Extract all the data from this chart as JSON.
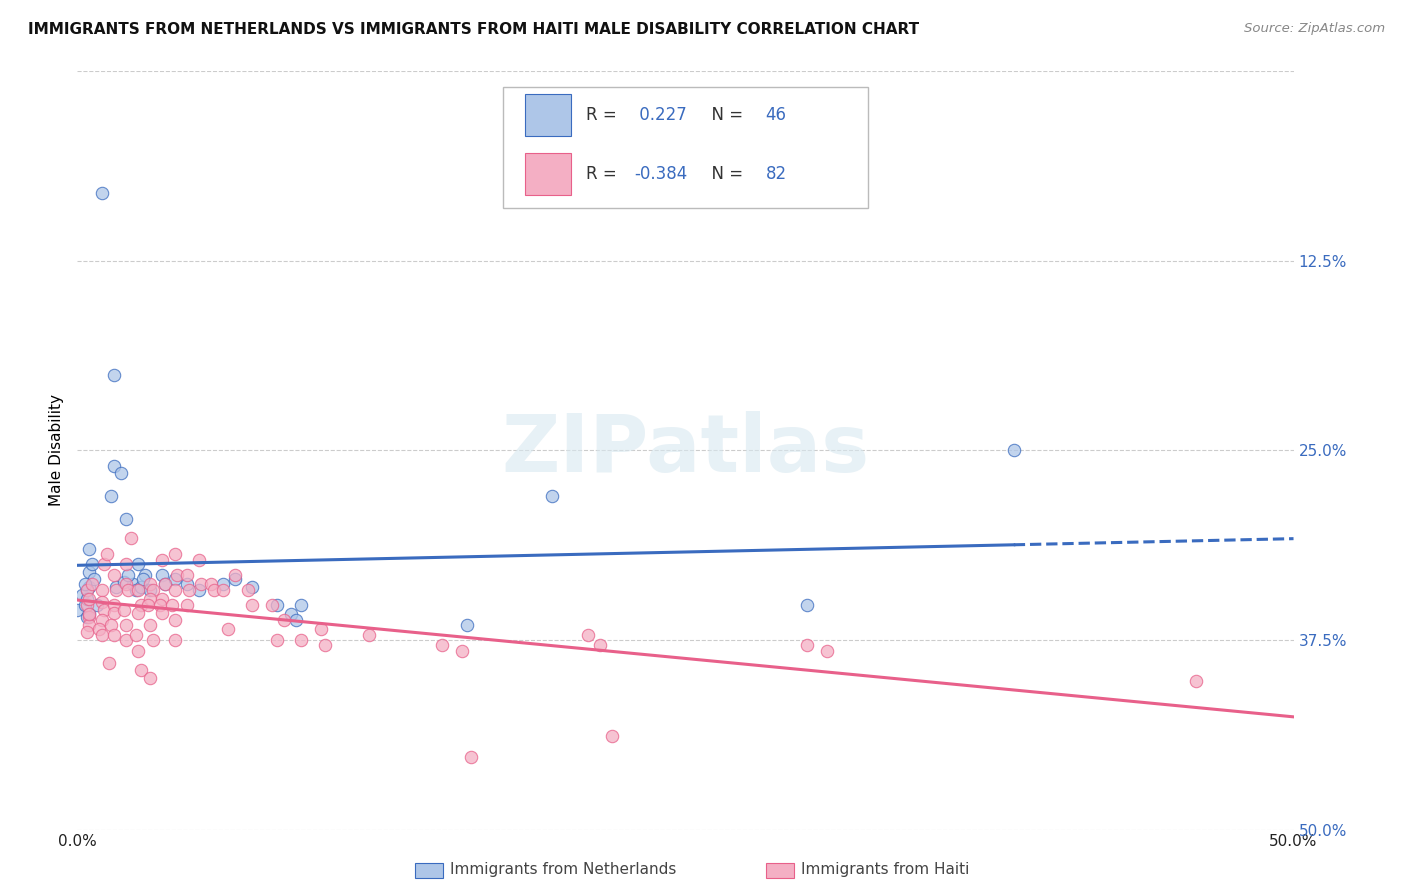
{
  "title": "IMMIGRANTS FROM NETHERLANDS VS IMMIGRANTS FROM HAITI MALE DISABILITY CORRELATION CHART",
  "source": "Source: ZipAtlas.com",
  "ylabel": "Male Disability",
  "xlim": [
    0.0,
    0.5
  ],
  "ylim": [
    0.0,
    0.5
  ],
  "xticks": [
    0.0,
    0.1,
    0.2,
    0.3,
    0.4,
    0.5
  ],
  "yticks": [
    0.0,
    0.125,
    0.25,
    0.375,
    0.5
  ],
  "netherlands_R": 0.227,
  "netherlands_N": 46,
  "haiti_R": -0.384,
  "haiti_N": 82,
  "netherlands_color": "#aec6e8",
  "haiti_color": "#f4afc4",
  "netherlands_line_color": "#3a6bbf",
  "haiti_line_color": "#e8608a",
  "netherlands_scatter": [
    [
      0.01,
      0.42
    ],
    [
      0.015,
      0.3
    ],
    [
      0.0,
      0.145
    ],
    [
      0.005,
      0.185
    ],
    [
      0.005,
      0.17
    ],
    [
      0.005,
      0.16
    ],
    [
      0.002,
      0.155
    ],
    [
      0.003,
      0.148
    ],
    [
      0.004,
      0.14
    ],
    [
      0.006,
      0.175
    ],
    [
      0.007,
      0.165
    ],
    [
      0.004,
      0.158
    ],
    [
      0.003,
      0.162
    ],
    [
      0.004,
      0.152
    ],
    [
      0.008,
      0.148
    ],
    [
      0.005,
      0.142
    ],
    [
      0.015,
      0.24
    ],
    [
      0.018,
      0.235
    ],
    [
      0.014,
      0.22
    ],
    [
      0.02,
      0.205
    ],
    [
      0.025,
      0.175
    ],
    [
      0.028,
      0.168
    ],
    [
      0.023,
      0.162
    ],
    [
      0.024,
      0.158
    ],
    [
      0.016,
      0.16
    ],
    [
      0.019,
      0.163
    ],
    [
      0.021,
      0.168
    ],
    [
      0.026,
      0.16
    ],
    [
      0.027,
      0.165
    ],
    [
      0.03,
      0.158
    ],
    [
      0.035,
      0.168
    ],
    [
      0.036,
      0.162
    ],
    [
      0.04,
      0.165
    ],
    [
      0.045,
      0.162
    ],
    [
      0.05,
      0.158
    ],
    [
      0.06,
      0.162
    ],
    [
      0.065,
      0.165
    ],
    [
      0.072,
      0.16
    ],
    [
      0.082,
      0.148
    ],
    [
      0.088,
      0.142
    ],
    [
      0.092,
      0.148
    ],
    [
      0.09,
      0.138
    ],
    [
      0.16,
      0.135
    ],
    [
      0.195,
      0.22
    ],
    [
      0.385,
      0.25
    ],
    [
      0.3,
      0.148
    ]
  ],
  "haiti_scatter": [
    [
      0.004,
      0.158
    ],
    [
      0.004,
      0.148
    ],
    [
      0.005,
      0.152
    ],
    [
      0.005,
      0.14
    ],
    [
      0.005,
      0.135
    ],
    [
      0.005,
      0.142
    ],
    [
      0.006,
      0.162
    ],
    [
      0.004,
      0.13
    ],
    [
      0.01,
      0.158
    ],
    [
      0.01,
      0.15
    ],
    [
      0.011,
      0.145
    ],
    [
      0.01,
      0.138
    ],
    [
      0.009,
      0.132
    ],
    [
      0.01,
      0.128
    ],
    [
      0.011,
      0.175
    ],
    [
      0.012,
      0.182
    ],
    [
      0.015,
      0.168
    ],
    [
      0.016,
      0.158
    ],
    [
      0.015,
      0.148
    ],
    [
      0.015,
      0.143
    ],
    [
      0.014,
      0.135
    ],
    [
      0.015,
      0.128
    ],
    [
      0.013,
      0.11
    ],
    [
      0.02,
      0.162
    ],
    [
      0.021,
      0.158
    ],
    [
      0.02,
      0.175
    ],
    [
      0.022,
      0.192
    ],
    [
      0.019,
      0.145
    ],
    [
      0.02,
      0.135
    ],
    [
      0.02,
      0.125
    ],
    [
      0.025,
      0.158
    ],
    [
      0.026,
      0.148
    ],
    [
      0.025,
      0.143
    ],
    [
      0.024,
      0.128
    ],
    [
      0.025,
      0.118
    ],
    [
      0.026,
      0.105
    ],
    [
      0.03,
      0.162
    ],
    [
      0.031,
      0.158
    ],
    [
      0.03,
      0.152
    ],
    [
      0.029,
      0.148
    ],
    [
      0.03,
      0.135
    ],
    [
      0.031,
      0.125
    ],
    [
      0.03,
      0.1
    ],
    [
      0.035,
      0.178
    ],
    [
      0.036,
      0.162
    ],
    [
      0.035,
      0.152
    ],
    [
      0.034,
      0.148
    ],
    [
      0.035,
      0.143
    ],
    [
      0.04,
      0.182
    ],
    [
      0.041,
      0.168
    ],
    [
      0.04,
      0.158
    ],
    [
      0.039,
      0.148
    ],
    [
      0.04,
      0.138
    ],
    [
      0.04,
      0.125
    ],
    [
      0.045,
      0.168
    ],
    [
      0.046,
      0.158
    ],
    [
      0.045,
      0.148
    ],
    [
      0.05,
      0.178
    ],
    [
      0.051,
      0.162
    ],
    [
      0.055,
      0.162
    ],
    [
      0.056,
      0.158
    ],
    [
      0.06,
      0.158
    ],
    [
      0.062,
      0.132
    ],
    [
      0.065,
      0.168
    ],
    [
      0.07,
      0.158
    ],
    [
      0.072,
      0.148
    ],
    [
      0.08,
      0.148
    ],
    [
      0.082,
      0.125
    ],
    [
      0.085,
      0.138
    ],
    [
      0.092,
      0.125
    ],
    [
      0.1,
      0.132
    ],
    [
      0.102,
      0.122
    ],
    [
      0.12,
      0.128
    ],
    [
      0.15,
      0.122
    ],
    [
      0.158,
      0.118
    ],
    [
      0.162,
      0.048
    ],
    [
      0.21,
      0.128
    ],
    [
      0.215,
      0.122
    ],
    [
      0.22,
      0.062
    ],
    [
      0.3,
      0.122
    ],
    [
      0.308,
      0.118
    ],
    [
      0.46,
      0.098
    ]
  ],
  "watermark": "ZIPatlas",
  "background_color": "#ffffff",
  "grid_color": "#cccccc"
}
